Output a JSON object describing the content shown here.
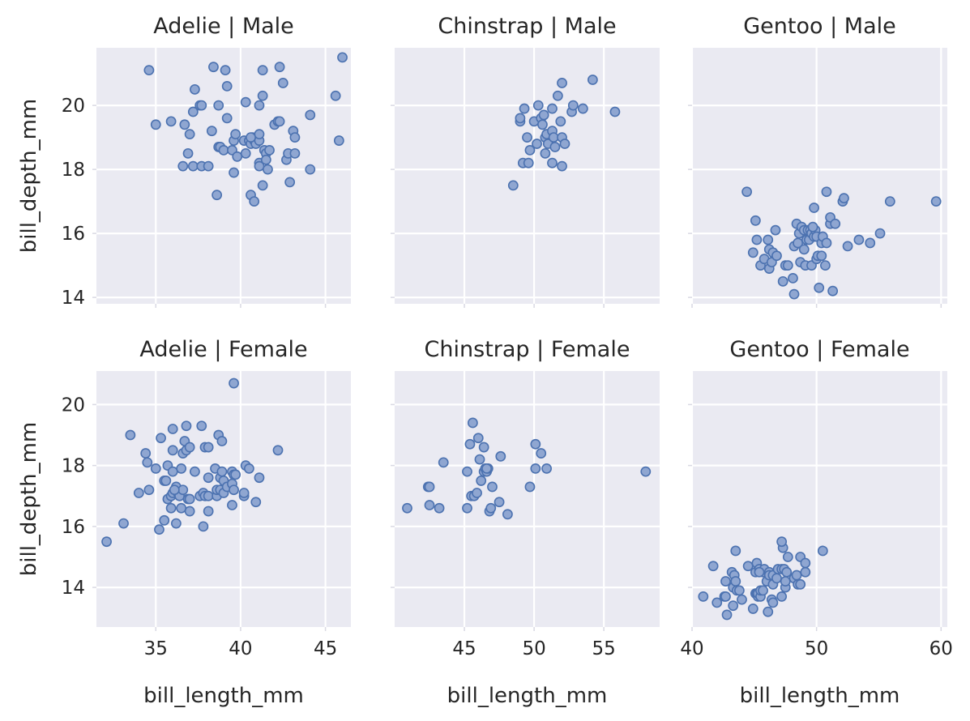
{
  "chart_data": [
    {
      "type": "scatter",
      "title": "Adelie | Male",
      "xlabel": "",
      "ylabel": "bill_depth_mm",
      "xlim": [
        31.5,
        46.5
      ],
      "ylim": [
        13.8,
        21.8
      ],
      "xticks": [
        "",
        "",
        ""
      ],
      "yticks": [
        "14",
        "16",
        "18",
        "20"
      ],
      "points": [
        [
          34.6,
          21.1
        ],
        [
          35.0,
          19.4
        ],
        [
          35.9,
          19.5
        ],
        [
          36.6,
          18.1
        ],
        [
          36.7,
          19.4
        ],
        [
          36.9,
          18.5
        ],
        [
          37.0,
          19.1
        ],
        [
          37.2,
          19.8
        ],
        [
          37.2,
          18.1
        ],
        [
          37.3,
          20.5
        ],
        [
          37.6,
          20.0
        ],
        [
          37.7,
          18.1
        ],
        [
          37.7,
          20.0
        ],
        [
          38.1,
          18.1
        ],
        [
          38.3,
          19.2
        ],
        [
          38.4,
          21.2
        ],
        [
          38.6,
          17.2
        ],
        [
          38.7,
          18.7
        ],
        [
          38.7,
          20.0
        ],
        [
          38.8,
          18.7
        ],
        [
          39.0,
          18.6
        ],
        [
          39.2,
          19.6
        ],
        [
          39.1,
          21.1
        ],
        [
          39.2,
          20.6
        ],
        [
          39.5,
          18.6
        ],
        [
          39.6,
          18.9
        ],
        [
          39.6,
          17.9
        ],
        [
          39.7,
          19.1
        ],
        [
          39.8,
          18.4
        ],
        [
          40.2,
          18.9
        ],
        [
          40.3,
          20.1
        ],
        [
          40.3,
          18.5
        ],
        [
          40.5,
          18.9
        ],
        [
          40.6,
          17.2
        ],
        [
          40.6,
          18.8
        ],
        [
          40.7,
          19.0
        ],
        [
          40.8,
          18.9
        ],
        [
          40.8,
          17.0
        ],
        [
          40.9,
          18.8
        ],
        [
          41.0,
          19.0
        ],
        [
          41.1,
          18.9
        ],
        [
          41.1,
          20.0
        ],
        [
          41.1,
          19.1
        ],
        [
          41.1,
          18.2
        ],
        [
          41.1,
          18.1
        ],
        [
          41.3,
          17.5
        ],
        [
          41.3,
          21.1
        ],
        [
          41.3,
          20.3
        ],
        [
          41.4,
          18.6
        ],
        [
          41.5,
          18.5
        ],
        [
          41.5,
          18.3
        ],
        [
          41.6,
          18.0
        ],
        [
          41.7,
          18.6
        ],
        [
          42.0,
          19.4
        ],
        [
          42.2,
          19.5
        ],
        [
          42.3,
          21.2
        ],
        [
          42.5,
          20.7
        ],
        [
          42.7,
          18.3
        ],
        [
          42.8,
          18.5
        ],
        [
          42.9,
          17.6
        ],
        [
          43.2,
          18.5
        ],
        [
          43.1,
          19.2
        ],
        [
          43.2,
          19.0
        ],
        [
          44.1,
          18.0
        ],
        [
          44.1,
          19.7
        ],
        [
          45.6,
          20.3
        ],
        [
          45.8,
          18.9
        ],
        [
          46.0,
          21.5
        ],
        [
          42.3,
          19.5
        ],
        [
          40.6,
          19.0
        ]
      ]
    },
    {
      "type": "scatter",
      "title": "Chinstrap | Male",
      "xlabel": "",
      "ylabel": "",
      "xlim": [
        40.0,
        59.0
      ],
      "ylim": [
        13.8,
        21.8
      ],
      "xticks": [
        "",
        "",
        "",
        ""
      ],
      "yticks": [
        "",
        "",
        "",
        ""
      ],
      "points": [
        [
          48.5,
          17.5
        ],
        [
          49.0,
          19.5
        ],
        [
          49.0,
          19.6
        ],
        [
          49.2,
          18.2
        ],
        [
          49.3,
          19.9
        ],
        [
          49.6,
          18.2
        ],
        [
          49.7,
          18.6
        ],
        [
          50.0,
          19.5
        ],
        [
          50.2,
          18.8
        ],
        [
          50.3,
          20.0
        ],
        [
          50.5,
          19.6
        ],
        [
          50.6,
          19.4
        ],
        [
          50.7,
          19.7
        ],
        [
          50.8,
          18.5
        ],
        [
          50.8,
          19.0
        ],
        [
          50.9,
          19.1
        ],
        [
          51.0,
          18.8
        ],
        [
          51.3,
          18.2
        ],
        [
          51.3,
          19.2
        ],
        [
          51.3,
          19.9
        ],
        [
          51.4,
          19.0
        ],
        [
          51.5,
          18.7
        ],
        [
          51.7,
          20.3
        ],
        [
          51.9,
          19.5
        ],
        [
          52.0,
          18.1
        ],
        [
          52.0,
          19.0
        ],
        [
          52.0,
          20.7
        ],
        [
          52.2,
          18.8
        ],
        [
          52.7,
          19.8
        ],
        [
          52.8,
          20.0
        ],
        [
          53.5,
          19.9
        ],
        [
          54.2,
          20.8
        ],
        [
          55.8,
          19.8
        ],
        [
          49.5,
          19.0
        ]
      ]
    },
    {
      "type": "scatter",
      "title": "Gentoo | Male",
      "xlabel": "",
      "ylabel": "",
      "xlim": [
        40.0,
        60.5
      ],
      "ylim": [
        13.8,
        21.8
      ],
      "xticks": [
        "",
        "",
        ""
      ],
      "yticks": [
        "",
        "",
        "",
        ""
      ],
      "points": [
        [
          44.4,
          17.3
        ],
        [
          44.9,
          15.4
        ],
        [
          45.2,
          15.8
        ],
        [
          45.1,
          16.4
        ],
        [
          45.5,
          15.0
        ],
        [
          45.8,
          15.2
        ],
        [
          46.1,
          15.8
        ],
        [
          46.2,
          14.9
        ],
        [
          46.2,
          15.5
        ],
        [
          46.4,
          15.1
        ],
        [
          46.5,
          15.4
        ],
        [
          46.7,
          16.1
        ],
        [
          46.8,
          15.3
        ],
        [
          47.3,
          14.5
        ],
        [
          47.5,
          15.0
        ],
        [
          47.7,
          15.0
        ],
        [
          48.1,
          14.6
        ],
        [
          48.2,
          15.6
        ],
        [
          48.2,
          14.1
        ],
        [
          48.4,
          16.3
        ],
        [
          48.5,
          15.7
        ],
        [
          48.6,
          16.0
        ],
        [
          48.7,
          15.1
        ],
        [
          48.8,
          16.2
        ],
        [
          49.0,
          16.1
        ],
        [
          49.1,
          15.0
        ],
        [
          49.2,
          15.8
        ],
        [
          49.3,
          16.1
        ],
        [
          49.4,
          15.8
        ],
        [
          49.5,
          16.1
        ],
        [
          49.6,
          16.0
        ],
        [
          49.6,
          15.0
        ],
        [
          49.8,
          15.9
        ],
        [
          49.8,
          16.8
        ],
        [
          49.9,
          16.1
        ],
        [
          50.0,
          15.2
        ],
        [
          50.0,
          15.9
        ],
        [
          50.1,
          15.3
        ],
        [
          50.2,
          14.3
        ],
        [
          50.4,
          15.7
        ],
        [
          50.4,
          15.3
        ],
        [
          50.5,
          15.9
        ],
        [
          50.7,
          15.0
        ],
        [
          50.8,
          15.7
        ],
        [
          50.8,
          17.3
        ],
        [
          51.1,
          16.3
        ],
        [
          51.1,
          16.5
        ],
        [
          51.3,
          14.2
        ],
        [
          51.5,
          16.3
        ],
        [
          52.1,
          17.0
        ],
        [
          52.2,
          17.1
        ],
        [
          52.5,
          15.6
        ],
        [
          53.4,
          15.8
        ],
        [
          54.3,
          15.7
        ],
        [
          55.1,
          16.0
        ],
        [
          55.9,
          17.0
        ],
        [
          59.6,
          17.0
        ],
        [
          49.7,
          16.2
        ],
        [
          49.0,
          15.5
        ]
      ]
    },
    {
      "type": "scatter",
      "title": "Adelie | Female",
      "xlabel": "bill_length_mm",
      "ylabel": "bill_depth_mm",
      "xlim": [
        31.5,
        46.5
      ],
      "ylim": [
        12.7,
        21.1
      ],
      "xticks": [
        "35",
        "40",
        "45"
      ],
      "yticks": [
        "14",
        "16",
        "18",
        "20"
      ],
      "points": [
        [
          32.1,
          15.5
        ],
        [
          33.1,
          16.1
        ],
        [
          33.5,
          19.0
        ],
        [
          34.0,
          17.1
        ],
        [
          34.4,
          18.4
        ],
        [
          34.5,
          18.1
        ],
        [
          34.6,
          17.2
        ],
        [
          35.0,
          17.9
        ],
        [
          35.2,
          15.9
        ],
        [
          35.3,
          18.9
        ],
        [
          35.5,
          16.2
        ],
        [
          35.5,
          17.5
        ],
        [
          35.6,
          17.5
        ],
        [
          35.7,
          16.9
        ],
        [
          35.7,
          18.0
        ],
        [
          35.9,
          16.6
        ],
        [
          35.9,
          17.0
        ],
        [
          36.0,
          17.1
        ],
        [
          36.0,
          17.8
        ],
        [
          36.0,
          18.5
        ],
        [
          36.0,
          19.2
        ],
        [
          36.2,
          16.1
        ],
        [
          36.2,
          17.2
        ],
        [
          36.2,
          17.3
        ],
        [
          36.3,
          17.1
        ],
        [
          36.4,
          17.0
        ],
        [
          36.5,
          16.6
        ],
        [
          36.5,
          17.9
        ],
        [
          36.6,
          17.2
        ],
        [
          36.6,
          18.4
        ],
        [
          36.7,
          18.8
        ],
        [
          36.8,
          18.5
        ],
        [
          36.8,
          19.3
        ],
        [
          36.9,
          16.9
        ],
        [
          37.0,
          16.5
        ],
        [
          37.0,
          16.9
        ],
        [
          37.0,
          18.6
        ],
        [
          37.3,
          17.8
        ],
        [
          37.6,
          17.0
        ],
        [
          37.7,
          19.3
        ],
        [
          37.8,
          16.0
        ],
        [
          37.8,
          17.1
        ],
        [
          37.9,
          17.0
        ],
        [
          37.9,
          18.6
        ],
        [
          38.1,
          16.5
        ],
        [
          38.1,
          17.0
        ],
        [
          38.1,
          17.6
        ],
        [
          38.1,
          18.6
        ],
        [
          38.5,
          17.9
        ],
        [
          38.6,
          17.0
        ],
        [
          38.6,
          17.2
        ],
        [
          38.7,
          19.0
        ],
        [
          38.8,
          17.2
        ],
        [
          38.8,
          17.6
        ],
        [
          38.9,
          17.8
        ],
        [
          38.9,
          18.8
        ],
        [
          39.0,
          17.1
        ],
        [
          39.0,
          17.5
        ],
        [
          39.2,
          17.3
        ],
        [
          39.5,
          16.7
        ],
        [
          39.5,
          17.4
        ],
        [
          39.5,
          17.8
        ],
        [
          39.6,
          17.2
        ],
        [
          39.6,
          17.7
        ],
        [
          39.6,
          20.7
        ],
        [
          39.7,
          17.7
        ],
        [
          40.2,
          17.0
        ],
        [
          40.2,
          17.1
        ],
        [
          40.3,
          18.0
        ],
        [
          40.5,
          17.9
        ],
        [
          40.9,
          16.8
        ],
        [
          41.1,
          17.6
        ],
        [
          42.2,
          18.5
        ],
        [
          36.1,
          17.2
        ]
      ]
    },
    {
      "type": "scatter",
      "title": "Chinstrap | Female",
      "xlabel": "bill_length_mm",
      "ylabel": "",
      "xlim": [
        40.0,
        59.0
      ],
      "ylim": [
        12.7,
        21.1
      ],
      "xticks": [
        "45",
        "50",
        "55"
      ],
      "yticks": [
        "",
        "",
        "",
        ""
      ],
      "points": [
        [
          40.9,
          16.6
        ],
        [
          42.4,
          17.3
        ],
        [
          42.5,
          17.3
        ],
        [
          42.5,
          16.7
        ],
        [
          43.2,
          16.6
        ],
        [
          43.5,
          18.1
        ],
        [
          45.2,
          16.6
        ],
        [
          45.2,
          17.8
        ],
        [
          45.4,
          18.7
        ],
        [
          45.5,
          17.0
        ],
        [
          45.6,
          19.4
        ],
        [
          45.7,
          17.0
        ],
        [
          45.9,
          17.1
        ],
        [
          46.0,
          18.9
        ],
        [
          46.1,
          18.2
        ],
        [
          46.2,
          17.5
        ],
        [
          46.4,
          17.8
        ],
        [
          46.4,
          18.6
        ],
        [
          46.5,
          17.9
        ],
        [
          46.6,
          17.8
        ],
        [
          46.7,
          17.9
        ],
        [
          46.8,
          16.5
        ],
        [
          46.9,
          16.6
        ],
        [
          47.0,
          17.3
        ],
        [
          47.5,
          16.8
        ],
        [
          47.6,
          18.3
        ],
        [
          48.1,
          16.4
        ],
        [
          49.7,
          17.3
        ],
        [
          50.1,
          17.9
        ],
        [
          50.1,
          18.7
        ],
        [
          50.5,
          18.4
        ],
        [
          50.9,
          17.9
        ],
        [
          58.0,
          17.8
        ],
        [
          46.6,
          17.9
        ]
      ]
    },
    {
      "type": "scatter",
      "title": "Gentoo | Female",
      "xlabel": "bill_length_mm",
      "ylabel": "",
      "xlim": [
        40.0,
        60.5
      ],
      "ylim": [
        12.7,
        21.1
      ],
      "xticks": [
        "40",
        "50",
        "60"
      ],
      "yticks": [
        "",
        "",
        "",
        ""
      ],
      "points": [
        [
          40.9,
          13.7
        ],
        [
          41.7,
          14.7
        ],
        [
          42.0,
          13.5
        ],
        [
          42.6,
          13.7
        ],
        [
          42.7,
          13.7
        ],
        [
          42.7,
          14.2
        ],
        [
          42.8,
          13.1
        ],
        [
          43.2,
          14.5
        ],
        [
          43.3,
          13.4
        ],
        [
          43.3,
          14.0
        ],
        [
          43.4,
          14.4
        ],
        [
          43.5,
          14.2
        ],
        [
          43.5,
          15.2
        ],
        [
          43.6,
          13.9
        ],
        [
          43.8,
          13.9
        ],
        [
          44.0,
          13.6
        ],
        [
          44.5,
          14.7
        ],
        [
          44.9,
          13.3
        ],
        [
          45.1,
          14.5
        ],
        [
          45.1,
          13.8
        ],
        [
          45.2,
          13.8
        ],
        [
          45.2,
          14.8
        ],
        [
          45.3,
          13.7
        ],
        [
          45.3,
          13.8
        ],
        [
          45.4,
          14.6
        ],
        [
          45.5,
          13.7
        ],
        [
          45.5,
          13.9
        ],
        [
          45.7,
          13.9
        ],
        [
          45.7,
          14.5
        ],
        [
          45.8,
          14.6
        ],
        [
          46.0,
          14.2
        ],
        [
          46.1,
          13.2
        ],
        [
          46.2,
          14.5
        ],
        [
          46.2,
          14.4
        ],
        [
          46.4,
          13.6
        ],
        [
          46.5,
          13.5
        ],
        [
          46.5,
          14.1
        ],
        [
          46.5,
          14.4
        ],
        [
          46.8,
          14.3
        ],
        [
          46.9,
          14.6
        ],
        [
          47.2,
          13.7
        ],
        [
          47.2,
          14.6
        ],
        [
          47.3,
          15.3
        ],
        [
          47.4,
          14.6
        ],
        [
          47.5,
          14.0
        ],
        [
          47.5,
          14.2
        ],
        [
          47.6,
          14.5
        ],
        [
          47.7,
          15.0
        ],
        [
          48.2,
          14.3
        ],
        [
          48.4,
          14.4
        ],
        [
          48.5,
          14.1
        ],
        [
          48.7,
          14.1
        ],
        [
          48.7,
          15.0
        ],
        [
          49.1,
          14.5
        ],
        [
          49.1,
          14.8
        ],
        [
          50.5,
          15.2
        ],
        [
          47.2,
          15.5
        ],
        [
          45.4,
          14.5
        ]
      ]
    }
  ]
}
